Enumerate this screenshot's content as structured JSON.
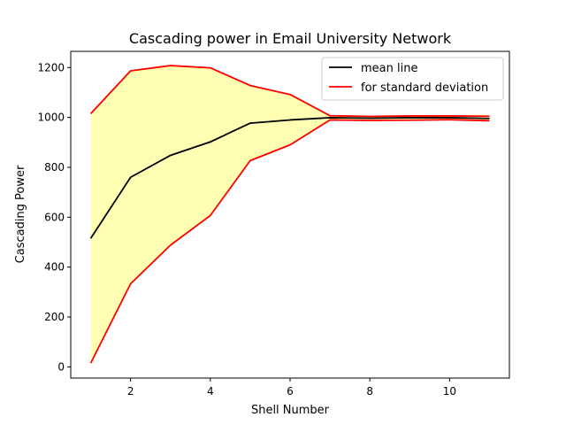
{
  "chart_data": {
    "type": "line",
    "title": "Cascading power in Email University Network",
    "xlabel": "Shell Number",
    "ylabel": "Cascading Power",
    "xlim": [
      0.5,
      11.5
    ],
    "ylim": [
      -45,
      1265
    ],
    "xticks": [
      2,
      4,
      6,
      8,
      10
    ],
    "yticks": [
      0,
      200,
      400,
      600,
      800,
      1000,
      1200
    ],
    "grid": false,
    "legend_position": "top-right",
    "x": [
      1,
      2,
      3,
      4,
      5,
      6,
      7,
      8,
      9,
      10,
      11
    ],
    "series": [
      {
        "name": "mean line",
        "color": "#000000",
        "values": [
          515,
          760,
          848,
          902,
          977,
          990,
          999,
          997,
          999,
          999,
          996
        ]
      },
      {
        "name": "for standard deviation",
        "color": "#ff0000",
        "role": "upper",
        "values": [
          1015,
          1187,
          1208,
          1199,
          1128,
          1092,
          1007,
          1004,
          1006,
          1006,
          1005
        ]
      },
      {
        "name": "",
        "color": "#ff0000",
        "role": "lower",
        "values": [
          15,
          333,
          488,
          607,
          827,
          890,
          990,
          988,
          989,
          991,
          987
        ]
      }
    ],
    "fill_color": "#ffffb3"
  }
}
